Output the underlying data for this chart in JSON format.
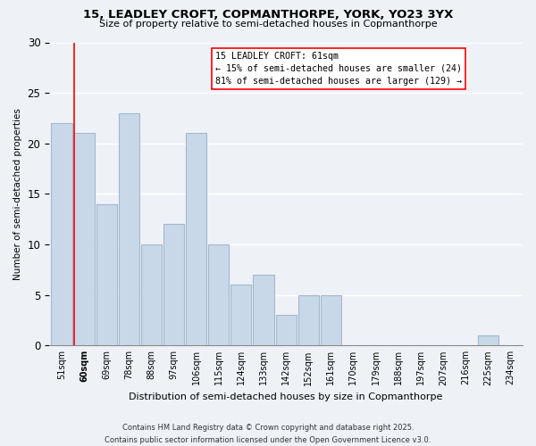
{
  "title1": "15, LEADLEY CROFT, COPMANTHORPE, YORK, YO23 3YX",
  "title2": "Size of property relative to semi-detached houses in Copmanthorpe",
  "xlabel": "Distribution of semi-detached houses by size in Copmanthorpe",
  "ylabel": "Number of semi-detached properties",
  "bins": [
    "51sqm",
    "60sqm",
    "69sqm",
    "78sqm",
    "88sqm",
    "97sqm",
    "106sqm",
    "115sqm",
    "124sqm",
    "133sqm",
    "142sqm",
    "152sqm",
    "161sqm",
    "170sqm",
    "179sqm",
    "188sqm",
    "197sqm",
    "207sqm",
    "216sqm",
    "225sqm",
    "234sqm"
  ],
  "values": [
    22,
    21,
    14,
    23,
    10,
    12,
    21,
    10,
    6,
    7,
    3,
    5,
    5,
    0,
    0,
    0,
    0,
    0,
    0,
    1,
    0
  ],
  "bar_color": "#c8d8e8",
  "bar_edge_color": "#a0b8d0",
  "red_line_bin_index": 1,
  "annotation_title": "15 LEADLEY CROFT: 61sqm",
  "annotation_line1": "← 15% of semi-detached houses are smaller (24)",
  "annotation_line2": "81% of semi-detached houses are larger (129) →",
  "highlight_bin_index": 1,
  "ylim": [
    0,
    30
  ],
  "yticks": [
    0,
    5,
    10,
    15,
    20,
    25,
    30
  ],
  "footnote1": "Contains HM Land Registry data © Crown copyright and database right 2025.",
  "footnote2": "Contains public sector information licensed under the Open Government Licence v3.0.",
  "background_color": "#eef2f7",
  "grid_color": "#ffffff"
}
